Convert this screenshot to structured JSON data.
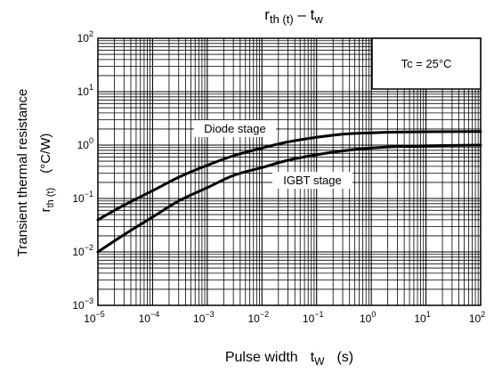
{
  "chart_data": {
    "type": "line",
    "title": {
      "main": "r",
      "main_sub": "th (t)",
      "dash": " – t",
      "dash_sub": "w"
    },
    "xlabel": {
      "text": "Pulse width",
      "sym": "t",
      "sym_sub": "W",
      "unit": "(s)"
    },
    "ylabel": {
      "line1": "Transient thermal resistance",
      "sym": "r",
      "sym_sub": "th (t)",
      "unit": "(°C/W)"
    },
    "x_scale": "log",
    "y_scale": "log",
    "xlim": [
      1e-05,
      100
    ],
    "ylim": [
      0.001,
      100
    ],
    "x_ticks": [
      {
        "value": 1e-05,
        "base": "10",
        "exp": "−5"
      },
      {
        "value": 0.0001,
        "base": "10",
        "exp": "−4"
      },
      {
        "value": 0.001,
        "base": "10",
        "exp": "−3"
      },
      {
        "value": 0.01,
        "base": "10",
        "exp": "−2"
      },
      {
        "value": 0.1,
        "base": "10",
        "exp": "−1"
      },
      {
        "value": 1,
        "base": "10",
        "exp": "0"
      },
      {
        "value": 10,
        "base": "10",
        "exp": "1"
      },
      {
        "value": 100,
        "base": "10",
        "exp": "2"
      }
    ],
    "y_ticks": [
      {
        "value": 0.001,
        "base": "10",
        "exp": "−3"
      },
      {
        "value": 0.01,
        "base": "10",
        "exp": "−2"
      },
      {
        "value": 0.1,
        "base": "10",
        "exp": "−1"
      },
      {
        "value": 1,
        "base": "10",
        "exp": "0"
      },
      {
        "value": 10,
        "base": "10",
        "exp": "1"
      },
      {
        "value": 100,
        "base": "10",
        "exp": "2"
      }
    ],
    "grid": true,
    "condition_box": "Tc = 25°C",
    "series": [
      {
        "name": "Diode stage",
        "x": [
          1e-05,
          3e-05,
          0.0001,
          0.0003,
          0.001,
          0.003,
          0.01,
          0.03,
          0.1,
          0.3,
          1,
          3,
          10,
          100
        ],
        "y": [
          0.04,
          0.075,
          0.14,
          0.25,
          0.42,
          0.63,
          0.88,
          1.15,
          1.4,
          1.6,
          1.7,
          1.75,
          1.78,
          1.8
        ]
      },
      {
        "name": "IGBT stage",
        "x": [
          1e-05,
          3e-05,
          0.0001,
          0.0003,
          0.001,
          0.003,
          0.01,
          0.03,
          0.1,
          0.3,
          1,
          3,
          10,
          100
        ],
        "y": [
          0.01,
          0.021,
          0.045,
          0.09,
          0.16,
          0.27,
          0.38,
          0.52,
          0.66,
          0.78,
          0.88,
          0.94,
          0.97,
          1.0
        ]
      }
    ]
  }
}
